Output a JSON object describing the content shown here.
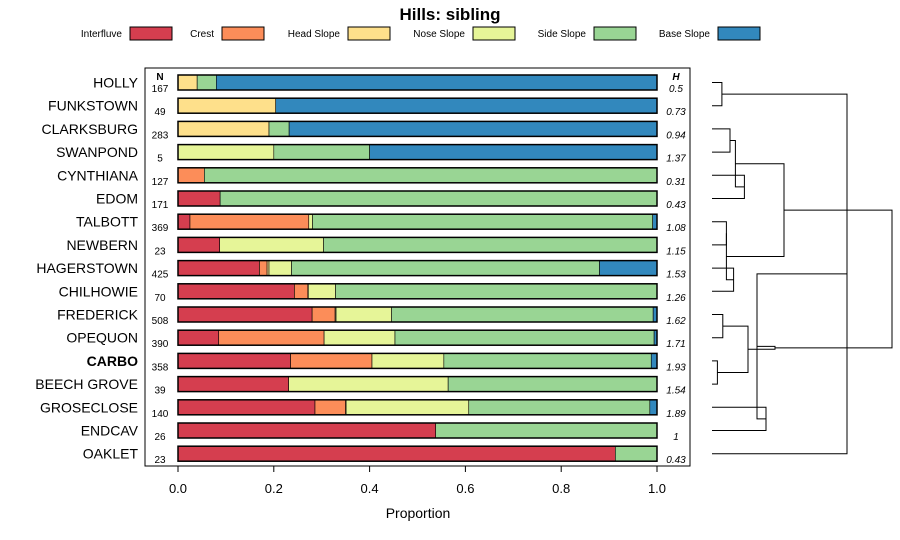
{
  "chart_data": {
    "type": "bar",
    "orientation": "horizontal",
    "stacked": true,
    "title": "Hills: sibling",
    "xlabel": "Proportion",
    "xlim": [
      0,
      1
    ],
    "xticks": [
      0.0,
      0.2,
      0.4,
      0.6,
      0.8,
      1.0
    ],
    "xtick_labels": [
      "0.0",
      "0.2",
      "0.4",
      "0.6",
      "0.8",
      "1.0"
    ],
    "count_header": "N",
    "entropy_header": "H",
    "legend_position": "top",
    "series": [
      {
        "name": "Interfluve",
        "color": "#d53e4f"
      },
      {
        "name": "Crest",
        "color": "#fc8d59"
      },
      {
        "name": "Head Slope",
        "color": "#fee08b"
      },
      {
        "name": "Nose Slope",
        "color": "#e6f598"
      },
      {
        "name": "Side Slope",
        "color": "#99d594"
      },
      {
        "name": "Base Slope",
        "color": "#3288bd"
      }
    ],
    "categories": [
      {
        "name": "HOLLY",
        "n": "167",
        "h": "0.5",
        "bold": false,
        "values": [
          0,
          0,
          0.04,
          0,
          0.04,
          0.92
        ]
      },
      {
        "name": "FUNKSTOWN",
        "n": "49",
        "h": "0.73",
        "bold": false,
        "values": [
          0,
          0,
          0.204,
          0,
          0,
          0.796
        ]
      },
      {
        "name": "CLARKSBURG",
        "n": "283",
        "h": "0.94",
        "bold": false,
        "values": [
          0,
          0,
          0.19,
          0,
          0.042,
          0.768
        ]
      },
      {
        "name": "SWANPOND",
        "n": "5",
        "h": "1.37",
        "bold": false,
        "values": [
          0,
          0,
          0,
          0.2,
          0.2,
          0.6
        ]
      },
      {
        "name": "CYNTHIANA",
        "n": "127",
        "h": "0.31",
        "bold": false,
        "values": [
          0,
          0.055,
          0,
          0,
          0.945,
          0
        ]
      },
      {
        "name": "EDOM",
        "n": "171",
        "h": "0.43",
        "bold": false,
        "values": [
          0.088,
          0,
          0,
          0,
          0.912,
          0
        ]
      },
      {
        "name": "TALBOTT",
        "n": "369",
        "h": "1.08",
        "bold": false,
        "values": [
          0.025,
          0.248,
          0,
          0.008,
          0.71,
          0.009
        ]
      },
      {
        "name": "NEWBERN",
        "n": "23",
        "h": "1.15",
        "bold": false,
        "values": [
          0.087,
          0,
          0,
          0.217,
          0.696,
          0
        ]
      },
      {
        "name": "HAGERSTOWN",
        "n": "425",
        "h": "1.53",
        "bold": false,
        "values": [
          0.17,
          0.016,
          0.004,
          0.047,
          0.643,
          0.12
        ]
      },
      {
        "name": "CHILHOWIE",
        "n": "70",
        "h": "1.26",
        "bold": false,
        "values": [
          0.243,
          0.028,
          0.001,
          0.057,
          0.671,
          0
        ]
      },
      {
        "name": "FREDERICK",
        "n": "508",
        "h": "1.62",
        "bold": false,
        "values": [
          0.28,
          0.048,
          0.002,
          0.116,
          0.546,
          0.008
        ]
      },
      {
        "name": "OPEQUON",
        "n": "390",
        "h": "1.71",
        "bold": false,
        "values": [
          0.085,
          0.22,
          0,
          0.148,
          0.541,
          0.006
        ]
      },
      {
        "name": "CARBO",
        "n": "358",
        "h": "1.93",
        "bold": true,
        "values": [
          0.235,
          0.17,
          0,
          0.15,
          0.433,
          0.012
        ]
      },
      {
        "name": "BEECH GROVE",
        "n": "39",
        "h": "1.54",
        "bold": false,
        "values": [
          0.231,
          0,
          0,
          0.333,
          0.436,
          0
        ]
      },
      {
        "name": "GROSECLOSE",
        "n": "140",
        "h": "1.89",
        "bold": false,
        "values": [
          0.286,
          0.064,
          0.001,
          0.256,
          0.378,
          0.015
        ]
      },
      {
        "name": "ENDCAV",
        "n": "26",
        "h": "1",
        "bold": false,
        "values": [
          0.538,
          0,
          0,
          0,
          0.462,
          0
        ]
      },
      {
        "name": "OAKLET",
        "n": "23",
        "h": "0.43",
        "bold": false,
        "values": [
          0.913,
          0,
          0,
          0,
          0.087,
          0
        ]
      }
    ],
    "dendrogram": {
      "merges": [
        [
          0,
          1,
          0.055
        ],
        [
          2,
          3,
          0.1
        ],
        [
          4,
          5,
          0.18
        ],
        [
          6,
          7,
          0.08
        ],
        [
          8,
          9,
          0.12
        ],
        [
          10,
          11,
          0.06
        ],
        [
          12,
          13,
          0.03
        ],
        [
          14,
          15,
          0.3
        ],
        [
          16,
          17,
          0.75
        ],
        [
          18,
          19,
          0.13
        ],
        [
          20,
          21,
          0.08
        ],
        [
          22,
          23,
          0.2
        ],
        [
          24,
          25,
          0.25
        ],
        [
          26,
          27,
          0.4
        ],
        [
          28,
          29,
          0.35
        ],
        [
          30,
          31,
          1.0
        ]
      ],
      "leaf_order": [
        0,
        1,
        2,
        3,
        4,
        5,
        6,
        7,
        8,
        9,
        10,
        11,
        12,
        13,
        14,
        15,
        16
      ],
      "max_height": 1.0
    }
  }
}
